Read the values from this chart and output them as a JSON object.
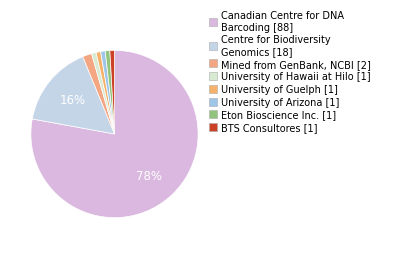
{
  "labels": [
    "Canadian Centre for DNA\nBarcoding [88]",
    "Centre for Biodiversity\nGenomics [18]",
    "Mined from GenBank, NCBI [2]",
    "University of Hawaii at Hilo [1]",
    "University of Guelph [1]",
    "University of Arizona [1]",
    "Eton Bioscience Inc. [1]",
    "BTS Consultores [1]"
  ],
  "values": [
    88,
    18,
    2,
    1,
    1,
    1,
    1,
    1
  ],
  "colors": [
    "#dbb8e0",
    "#c5d5e8",
    "#f4a582",
    "#d9ead3",
    "#f6b26b",
    "#9fc5e8",
    "#93c47d",
    "#cc4125"
  ],
  "background_color": "#ffffff",
  "legend_fontsize": 7.0,
  "pct_fontsize": 8.5
}
